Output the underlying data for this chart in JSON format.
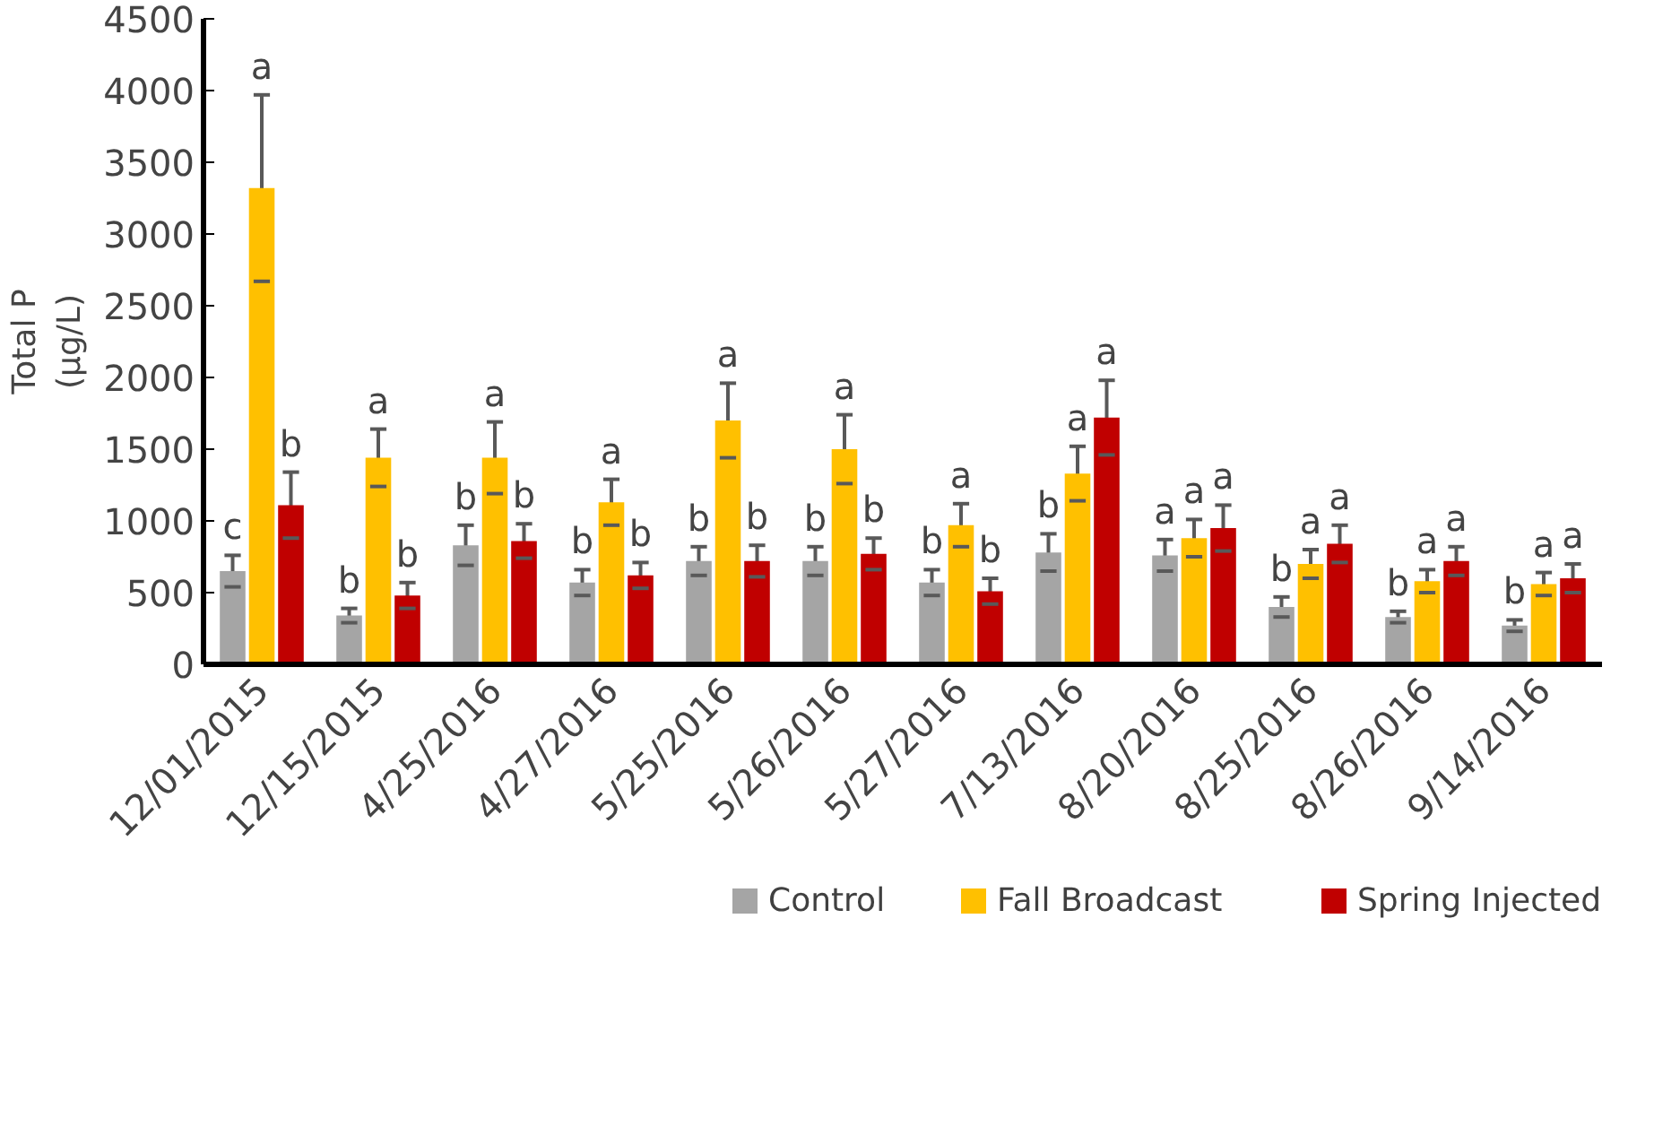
{
  "chart_data": {
    "type": "bar",
    "ylabel": "Total P\n(µg/L)",
    "categories": [
      "12/01/2015",
      "12/15/2015",
      "4/25/2016",
      "4/27/2016",
      "5/25/2016",
      "5/26/2016",
      "5/27/2016",
      "7/13/2016",
      "8/20/2016",
      "8/25/2016",
      "8/26/2016",
      "9/14/2016"
    ],
    "series": [
      {
        "name": "Control",
        "color": "#a5a5a5",
        "values": [
          650,
          340,
          830,
          570,
          720,
          720,
          570,
          780,
          760,
          400,
          330,
          270
        ],
        "errors": [
          110,
          50,
          140,
          90,
          100,
          100,
          90,
          130,
          110,
          70,
          40,
          40
        ],
        "value_labels": [
          "c",
          "b",
          "b",
          "b",
          "b",
          "b",
          "b",
          "b",
          "a",
          "b",
          "b",
          "b"
        ]
      },
      {
        "name": "Fall Broadcast",
        "color": "#ffc000",
        "values": [
          3320,
          1440,
          1440,
          1130,
          1700,
          1500,
          970,
          1330,
          880,
          700,
          580,
          560
        ],
        "errors": [
          650,
          200,
          250,
          160,
          260,
          240,
          150,
          190,
          130,
          100,
          80,
          80
        ],
        "value_labels": [
          "a",
          "a",
          "a",
          "a",
          "a",
          "a",
          "a",
          "a",
          "a",
          "a",
          "a",
          "a"
        ]
      },
      {
        "name": "Spring Injected",
        "color": "#c00000",
        "values": [
          1110,
          480,
          860,
          620,
          720,
          770,
          510,
          1720,
          950,
          840,
          720,
          600
        ],
        "errors": [
          230,
          90,
          120,
          90,
          110,
          110,
          90,
          260,
          160,
          130,
          100,
          100
        ],
        "value_labels": [
          "b",
          "b",
          "b",
          "b",
          "b",
          "b",
          "b",
          "a",
          "a",
          "a",
          "a",
          "a"
        ]
      }
    ],
    "ylim": [
      0,
      4500
    ],
    "yticks": [
      0,
      500,
      1000,
      1500,
      2000,
      2500,
      3000,
      3500,
      4000,
      4500
    ],
    "grid": false,
    "legend": "bottom"
  }
}
